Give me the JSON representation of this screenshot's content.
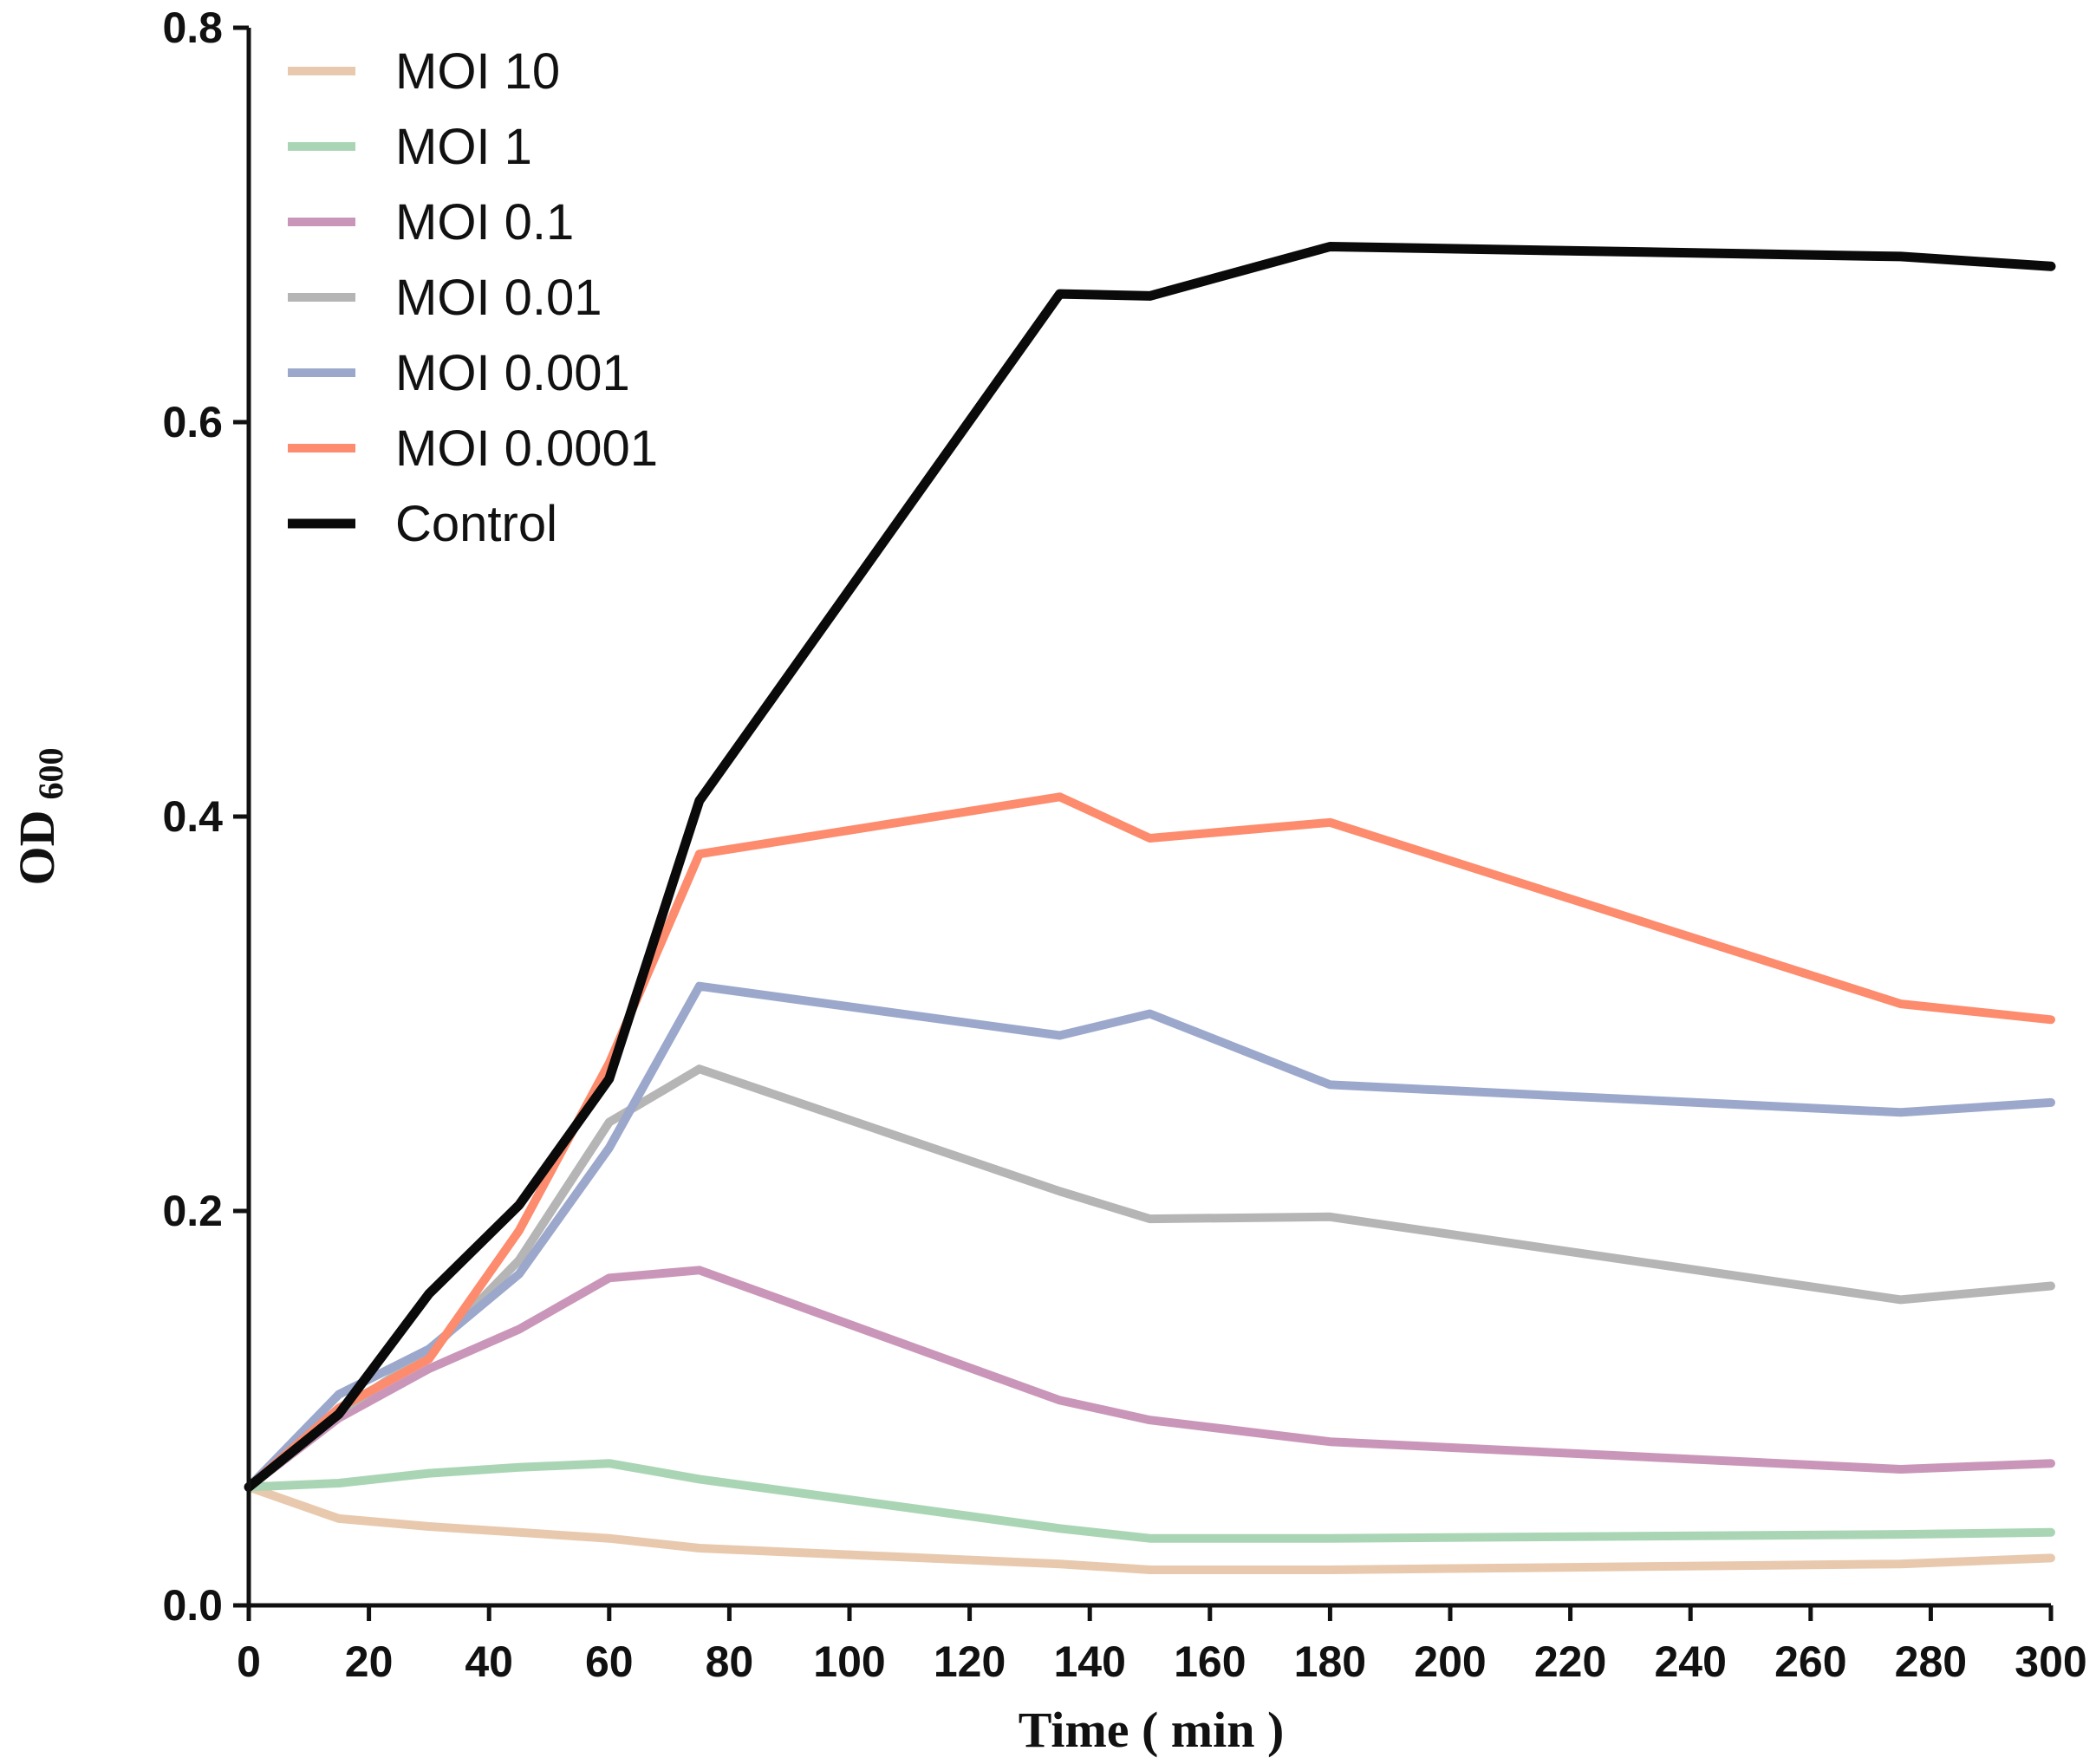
{
  "chart_data": {
    "type": "line",
    "title": "",
    "xlabel": "Time ( min )",
    "ylabel": "OD",
    "ylabel_subscript": "600",
    "xlim": [
      0,
      300
    ],
    "ylim": [
      0,
      0.8
    ],
    "x_ticks": [
      0,
      20,
      40,
      60,
      80,
      100,
      120,
      140,
      160,
      180,
      200,
      220,
      240,
      260,
      280,
      300
    ],
    "y_ticks": [
      0.0,
      0.2,
      0.4,
      0.6,
      0.8
    ],
    "y_tick_labels": [
      "0.0",
      "0.2",
      "0.4",
      "0.6",
      "0.8"
    ],
    "legend_position": "top-left",
    "grid": false,
    "x": [
      0,
      15,
      30,
      45,
      60,
      75,
      135,
      150,
      180,
      275,
      300
    ],
    "series": [
      {
        "name": "MOI 10",
        "color": "#E8C9AE",
        "values": [
          0.06,
          0.044,
          0.04,
          0.037,
          0.034,
          0.029,
          0.021,
          0.018,
          0.018,
          0.021,
          0.024
        ]
      },
      {
        "name": "MOI 1",
        "color": "#A9D5B5",
        "values": [
          0.06,
          0.062,
          0.067,
          0.07,
          0.072,
          0.064,
          0.039,
          0.034,
          0.034,
          0.036,
          0.037
        ]
      },
      {
        "name": "MOI 0.1",
        "color": "#C996B9",
        "values": [
          0.06,
          0.095,
          0.12,
          0.14,
          0.166,
          0.17,
          0.104,
          0.094,
          0.083,
          0.069,
          0.072
        ]
      },
      {
        "name": "MOI 0.01",
        "color": "#B5B5B5",
        "values": [
          0.06,
          0.098,
          0.128,
          0.175,
          0.245,
          0.272,
          0.21,
          0.196,
          0.197,
          0.155,
          0.162
        ]
      },
      {
        "name": "MOI 0.001",
        "color": "#9BA8CB",
        "values": [
          0.06,
          0.107,
          0.13,
          0.168,
          0.232,
          0.314,
          0.289,
          0.3,
          0.264,
          0.25,
          0.255
        ]
      },
      {
        "name": "MOI 0.0001",
        "color": "#FD8B6D",
        "values": [
          0.06,
          0.1,
          0.125,
          0.19,
          0.275,
          0.381,
          0.41,
          0.389,
          0.397,
          0.305,
          0.297
        ]
      },
      {
        "name": "Control",
        "color": "#0A0A0A",
        "values": [
          0.06,
          0.097,
          0.158,
          0.203,
          0.267,
          0.408,
          0.665,
          0.664,
          0.689,
          0.684,
          0.679
        ]
      }
    ]
  }
}
